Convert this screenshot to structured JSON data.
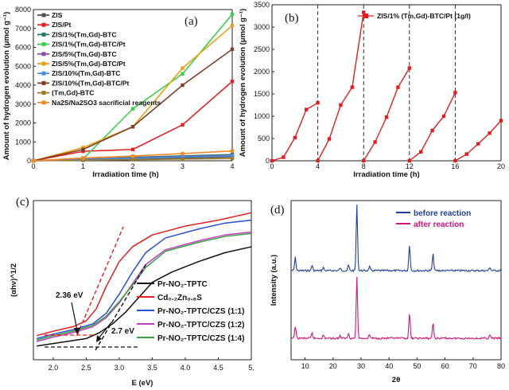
{
  "colors": {
    "zis": "#555555",
    "zis_pt": "#e02424",
    "zis1": "#2a7a6a",
    "zis1_pt": "#3ccf4e",
    "zis5": "#8a4fa8",
    "zis5_pt": "#e8a317",
    "zis10": "#4a8fe0",
    "zis10_pt": "#7b3f2a",
    "tmgd": "#9b7a2e",
    "na2s": "#f08a2a",
    "b": "#e02020",
    "c_tptc": "#111111",
    "c_czs": "#e02020",
    "c_11": "#2a4fd0",
    "c_12": "#c040c0",
    "c_14": "#3aa040",
    "d_before": "#1f3f9a",
    "d_after": "#d1147a"
  },
  "chart_data": [
    {
      "panel": "(a)",
      "type": "line",
      "xlabel": "Irradiation time (h)",
      "ylabel": "Amount of hydrogen evolution (μmol g⁻¹)",
      "xlim": [
        0,
        4
      ],
      "ylim": [
        0,
        8000
      ],
      "xticks": [
        "0",
        "1",
        "2",
        "3",
        "4"
      ],
      "yticks": [
        "0",
        "1000",
        "2000",
        "3000",
        "4000",
        "5000",
        "6000",
        "7000",
        "8000"
      ],
      "x": [
        0,
        1,
        2,
        3,
        4
      ],
      "series": [
        {
          "name": "ZIS",
          "color_key": "zis",
          "values": [
            0,
            50,
            100,
            150,
            200
          ]
        },
        {
          "name": "ZIS/Pt",
          "color_key": "zis_pt",
          "values": [
            0,
            500,
            600,
            1900,
            4200
          ]
        },
        {
          "name": "ZIS/1%(Tm,Gd)-BTC",
          "color_key": "zis1",
          "values": [
            0,
            80,
            180,
            260,
            330
          ]
        },
        {
          "name": "ZIS/1%(Tm,Gd)-BTC/Pt",
          "color_key": "zis1_pt",
          "values": [
            0,
            100,
            2750,
            4600,
            7750
          ]
        },
        {
          "name": "ZIS/5%(Tm,Gd)-BTC",
          "color_key": "zis5",
          "values": [
            0,
            70,
            150,
            220,
            290
          ]
        },
        {
          "name": "ZIS/5%(Tm,Gd)-BTC/Pt",
          "color_key": "zis5_pt",
          "values": [
            0,
            700,
            1800,
            4900,
            7150
          ]
        },
        {
          "name": "ZIS/10%(Tm,Gd)-BTC",
          "color_key": "zis10",
          "values": [
            0,
            60,
            130,
            200,
            260
          ]
        },
        {
          "name": "ZIS/10%(Tm,Gd)-BTC/Pt",
          "color_key": "zis10_pt",
          "values": [
            0,
            600,
            1800,
            4000,
            5900
          ]
        },
        {
          "name": "(Tm,Gd)-BTC",
          "color_key": "tmgd",
          "values": [
            0,
            30,
            60,
            90,
            120
          ]
        },
        {
          "name": "Na2S/Na2SO3 sacrificial reagents",
          "color_key": "na2s",
          "values": [
            0,
            150,
            250,
            380,
            520
          ]
        }
      ]
    },
    {
      "panel": "(b)",
      "type": "line",
      "xlabel": "Irradiation time (h)",
      "ylabel": "Amount of hydrogen evolution (μmol g⁻¹)",
      "xlim": [
        0,
        20
      ],
      "ylim": [
        0,
        3500
      ],
      "xticks": [
        "0",
        "4",
        "8",
        "12",
        "16",
        "20"
      ],
      "yticks": [
        "0",
        "500",
        "1000",
        "1500",
        "2000",
        "2500",
        "3000",
        "3500"
      ],
      "dividers": [
        4,
        8,
        12,
        16
      ],
      "legend": "ZIS/1% (Tm,Gd)-BTC/Pt (1g/l)",
      "cycles": [
        {
          "x": [
            0,
            1,
            2,
            3,
            4
          ],
          "y": [
            0,
            80,
            520,
            1150,
            1300
          ]
        },
        {
          "x": [
            4,
            5,
            6,
            7,
            8
          ],
          "y": [
            0,
            490,
            1250,
            1650,
            3330
          ]
        },
        {
          "x": [
            8,
            9,
            10,
            11,
            12
          ],
          "y": [
            0,
            420,
            980,
            1650,
            2080
          ]
        },
        {
          "x": [
            12,
            13,
            14,
            15,
            16
          ],
          "y": [
            0,
            200,
            680,
            1000,
            1530
          ]
        },
        {
          "x": [
            16,
            17,
            18,
            19,
            20
          ],
          "y": [
            0,
            150,
            380,
            620,
            900
          ]
        }
      ]
    },
    {
      "panel": "(c)",
      "type": "line",
      "xlabel": "E (eV)",
      "ylabel": "(αhν)^1/2",
      "xlim": [
        1.7,
        5.0
      ],
      "xticks": [
        "2.0",
        "2.5",
        "3.0",
        "3.5",
        "4.0",
        "4.5",
        "5."
      ],
      "annotations": [
        "2.36 eV",
        "2.7 eV"
      ],
      "series": [
        {
          "name": "Pr-NO₂-TPTC",
          "color_key": "c_tptc",
          "x": [
            1.75,
            2.2,
            2.5,
            2.7,
            2.9,
            3.1,
            3.3,
            3.5,
            3.8,
            4.2,
            4.6,
            5.0
          ],
          "y": [
            0.05,
            0.08,
            0.1,
            0.14,
            0.2,
            0.28,
            0.38,
            0.48,
            0.55,
            0.62,
            0.68,
            0.72
          ]
        },
        {
          "name": "Cd₀.₂Zn₀.₈S",
          "color_key": "c_czs",
          "x": [
            1.75,
            2.0,
            2.3,
            2.5,
            2.65,
            2.8,
            3.0,
            3.2,
            3.5,
            4.0,
            4.5,
            5.0
          ],
          "y": [
            0.12,
            0.15,
            0.18,
            0.22,
            0.3,
            0.45,
            0.62,
            0.72,
            0.8,
            0.86,
            0.9,
            0.95
          ]
        },
        {
          "name": "Pr-NO₂-TPTC/CZS (1:1)",
          "color_key": "c_11",
          "x": [
            1.75,
            2.0,
            2.3,
            2.6,
            2.8,
            3.0,
            3.2,
            3.4,
            3.7,
            4.2,
            4.6,
            5.0
          ],
          "y": [
            0.1,
            0.13,
            0.16,
            0.2,
            0.27,
            0.4,
            0.55,
            0.68,
            0.78,
            0.84,
            0.88,
            0.9
          ]
        },
        {
          "name": "Pr-NO₂-TPTC/CZS (1:2)",
          "color_key": "c_12",
          "x": [
            1.75,
            2.0,
            2.3,
            2.6,
            2.8,
            3.0,
            3.2,
            3.4,
            3.7,
            4.2,
            4.6,
            5.0
          ],
          "y": [
            0.08,
            0.11,
            0.14,
            0.18,
            0.24,
            0.34,
            0.47,
            0.6,
            0.7,
            0.76,
            0.8,
            0.82
          ]
        },
        {
          "name": "Pr-NO₂-TPTC/CZS (1:4)",
          "color_key": "c_14",
          "x": [
            1.75,
            2.0,
            2.3,
            2.6,
            2.8,
            3.0,
            3.2,
            3.4,
            3.7,
            4.2,
            4.6,
            5.0
          ],
          "y": [
            0.09,
            0.12,
            0.15,
            0.19,
            0.25,
            0.35,
            0.46,
            0.58,
            0.69,
            0.75,
            0.79,
            0.81
          ]
        }
      ]
    },
    {
      "panel": "(d)",
      "type": "line",
      "xlabel": "2θ",
      "ylabel": "Intensity (a.u.)",
      "xlim": [
        5,
        80
      ],
      "xticks": [
        "10",
        "20",
        "30",
        "40",
        "50",
        "60",
        "70",
        "80"
      ],
      "series": [
        {
          "name": "before reaction",
          "color_key": "d_before"
        },
        {
          "name": "after reaction",
          "color_key": "d_after"
        }
      ],
      "peaks": [
        {
          "x": 6.5,
          "h": 0.2
        },
        {
          "x": 12.5,
          "h": 0.08
        },
        {
          "x": 16.5,
          "h": 0.05
        },
        {
          "x": 22.5,
          "h": 0.04
        },
        {
          "x": 25.5,
          "h": 0.08
        },
        {
          "x": 28.5,
          "h": 1.0
        },
        {
          "x": 33.0,
          "h": 0.06
        },
        {
          "x": 47.3,
          "h": 0.4
        },
        {
          "x": 55.7,
          "h": 0.25
        },
        {
          "x": 76.0,
          "h": 0.05
        }
      ]
    }
  ]
}
